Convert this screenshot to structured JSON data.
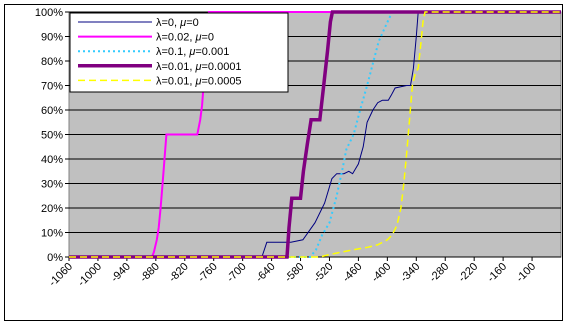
{
  "chart_data": {
    "type": "line",
    "grid": true,
    "legend_position": "top-left",
    "xlim": [
      -1060,
      -40
    ],
    "ylim": [
      0,
      100
    ],
    "x_ticks": [
      -1060,
      -1000,
      -940,
      -880,
      -820,
      -760,
      -700,
      -640,
      -580,
      -520,
      -460,
      -400,
      -340,
      -280,
      -220,
      -160,
      -100
    ],
    "y_ticks": [
      0,
      10,
      20,
      30,
      40,
      50,
      60,
      70,
      80,
      90,
      100
    ],
    "y_tick_suffix": "%",
    "plot_background": "#c0c0c0",
    "series": [
      {
        "label_parts": [
          "λ=0, ",
          "μ",
          "=0"
        ],
        "color": "#000080",
        "style": "solid",
        "width": 1,
        "points": [
          [
            -1060,
            0
          ],
          [
            -660,
            0
          ],
          [
            -650,
            6
          ],
          [
            -600,
            6
          ],
          [
            -575,
            7
          ],
          [
            -550,
            14
          ],
          [
            -530,
            22
          ],
          [
            -515,
            32
          ],
          [
            -505,
            34
          ],
          [
            -490,
            34
          ],
          [
            -480,
            35
          ],
          [
            -472,
            34
          ],
          [
            -460,
            38
          ],
          [
            -450,
            45
          ],
          [
            -442,
            55
          ],
          [
            -430,
            60
          ],
          [
            -420,
            63
          ],
          [
            -410,
            64
          ],
          [
            -398,
            64
          ],
          [
            -392,
            66
          ],
          [
            -384,
            69
          ],
          [
            -360,
            70
          ],
          [
            -352,
            70
          ],
          [
            -346,
            77
          ],
          [
            -340,
            90
          ],
          [
            -336,
            100
          ],
          [
            -40,
            100
          ]
        ]
      },
      {
        "label_parts": [
          "λ=0.02, ",
          "μ",
          "=0"
        ],
        "color": "#ff00ff",
        "style": "solid",
        "width": 2,
        "points": [
          [
            -1060,
            0
          ],
          [
            -888,
            0
          ],
          [
            -884,
            2
          ],
          [
            -878,
            7
          ],
          [
            -874,
            12
          ],
          [
            -870,
            20
          ],
          [
            -866,
            30
          ],
          [
            -862,
            40
          ],
          [
            -858,
            50
          ],
          [
            -794,
            50
          ],
          [
            -788,
            56
          ],
          [
            -784,
            62
          ],
          [
            -770,
            100
          ],
          [
            -40,
            100
          ]
        ]
      },
      {
        "label_parts": [
          "λ=0.1, ",
          "μ",
          "=0.001"
        ],
        "color": "#33ccff",
        "style": "dotted",
        "width": 2,
        "points": [
          [
            -1060,
            0
          ],
          [
            -560,
            0
          ],
          [
            -548,
            3
          ],
          [
            -535,
            9
          ],
          [
            -520,
            14
          ],
          [
            -505,
            25
          ],
          [
            -493,
            36
          ],
          [
            -485,
            44
          ],
          [
            -470,
            50
          ],
          [
            -455,
            61
          ],
          [
            -442,
            70
          ],
          [
            -430,
            79
          ],
          [
            -418,
            88
          ],
          [
            -402,
            95
          ],
          [
            -390,
            100
          ],
          [
            -40,
            100
          ]
        ]
      },
      {
        "label_parts": [
          "λ=0.01, ",
          "μ",
          "=0.0001"
        ],
        "color": "#800080",
        "style": "solid",
        "width": 3.5,
        "points": [
          [
            -1060,
            0
          ],
          [
            -608,
            0
          ],
          [
            -604,
            12
          ],
          [
            -598,
            24
          ],
          [
            -580,
            24
          ],
          [
            -574,
            35
          ],
          [
            -566,
            46
          ],
          [
            -558,
            56
          ],
          [
            -540,
            56
          ],
          [
            -532,
            70
          ],
          [
            -524,
            84
          ],
          [
            -518,
            96
          ],
          [
            -514,
            100
          ],
          [
            -40,
            100
          ]
        ]
      },
      {
        "label_parts": [
          "λ=0.01, ",
          "μ",
          "=0.0005"
        ],
        "color": "#ffff00",
        "style": "dashed",
        "width": 1.5,
        "points": [
          [
            -1060,
            0
          ],
          [
            -540,
            0
          ],
          [
            -520,
            1
          ],
          [
            -495,
            2
          ],
          [
            -470,
            3
          ],
          [
            -440,
            4
          ],
          [
            -420,
            5
          ],
          [
            -400,
            7
          ],
          [
            -390,
            9
          ],
          [
            -380,
            13
          ],
          [
            -372,
            20
          ],
          [
            -366,
            30
          ],
          [
            -360,
            42
          ],
          [
            -354,
            56
          ],
          [
            -348,
            70
          ],
          [
            -342,
            75
          ],
          [
            -336,
            77
          ],
          [
            -330,
            88
          ],
          [
            -326,
            96
          ],
          [
            -322,
            100
          ],
          [
            -40,
            100
          ]
        ]
      }
    ]
  }
}
